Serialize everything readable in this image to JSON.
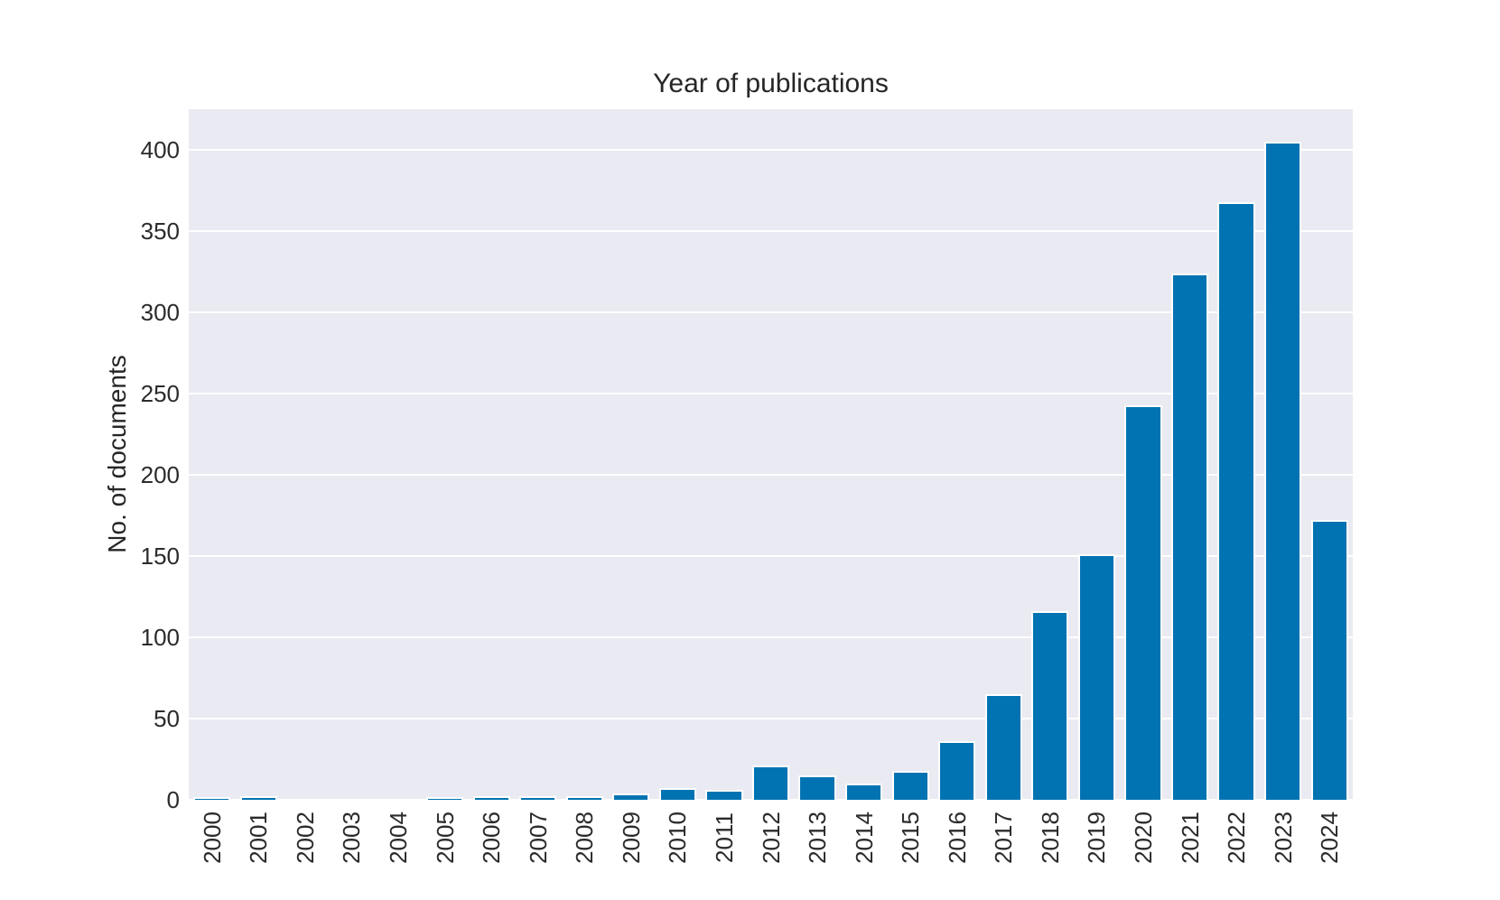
{
  "chart_data": {
    "type": "bar",
    "title": "Year of publications",
    "xlabel": "",
    "ylabel": "No. of documents",
    "categories": [
      "2000",
      "2001",
      "2002",
      "2003",
      "2004",
      "2005",
      "2006",
      "2007",
      "2008",
      "2009",
      "2010",
      "2011",
      "2012",
      "2013",
      "2014",
      "2015",
      "2016",
      "2017",
      "2018",
      "2019",
      "2020",
      "2021",
      "2022",
      "2023",
      "2024"
    ],
    "values": [
      1,
      2,
      0,
      0,
      0,
      1,
      2,
      2,
      2,
      4,
      7,
      6,
      21,
      15,
      10,
      18,
      36,
      65,
      116,
      151,
      243,
      324,
      368,
      405,
      172
    ],
    "yticks": [
      0,
      50,
      100,
      150,
      200,
      250,
      300,
      350,
      400
    ],
    "ylim": [
      0,
      425
    ],
    "grid": "horizontal-white",
    "legend": "none",
    "bar_color": "#0173b2",
    "bar_edge_color": "#ffffff",
    "plot_bg_color": "#eaeaf2",
    "figure_bg_color": "#ffffff"
  }
}
